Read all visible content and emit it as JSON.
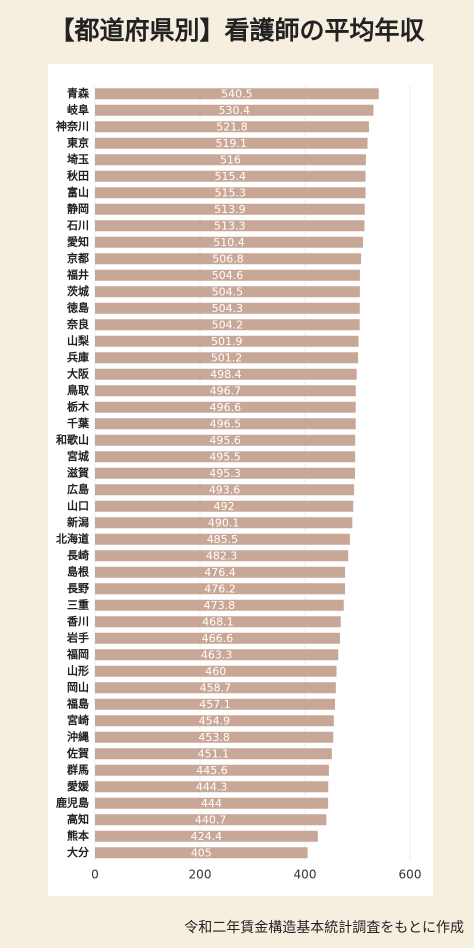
{
  "chart_data": {
    "type": "barh",
    "title": "【都道府県別】看護師の平均年収",
    "source": "令和二年賃金構造基本統計調査をもとに作成",
    "categories": [
      "青森",
      "岐阜",
      "神奈川",
      "東京",
      "埼玉",
      "秋田",
      "富山",
      "静岡",
      "石川",
      "愛知",
      "京都",
      "福井",
      "茨城",
      "徳島",
      "奈良",
      "山梨",
      "兵庫",
      "大阪",
      "鳥取",
      "栃木",
      "千葉",
      "和歌山",
      "宮城",
      "滋賀",
      "広島",
      "山口",
      "新潟",
      "北海道",
      "長崎",
      "島根",
      "長野",
      "三重",
      "香川",
      "岩手",
      "福岡",
      "山形",
      "岡山",
      "福島",
      "宮崎",
      "沖縄",
      "佐賀",
      "群馬",
      "愛媛",
      "鹿児島",
      "高知",
      "熊本",
      "大分"
    ],
    "values": [
      540.5,
      530.4,
      521.8,
      519.1,
      516,
      515.4,
      515.3,
      513.9,
      513.3,
      510.4,
      506.8,
      504.6,
      504.5,
      504.3,
      504.2,
      501.9,
      501.2,
      498.4,
      496.7,
      496.6,
      496.5,
      495.6,
      495.5,
      495.3,
      493.6,
      492,
      490.1,
      485.5,
      482.3,
      476.4,
      476.2,
      473.8,
      468.1,
      466.6,
      463.3,
      460,
      458.7,
      457.1,
      454.9,
      453.8,
      451.1,
      445.6,
      444.3,
      444,
      440.7,
      424.4,
      405
    ],
    "color": "#c8a797",
    "xlim": [
      0,
      600
    ],
    "xticks": [
      0,
      200,
      400,
      600
    ],
    "grid": true
  }
}
